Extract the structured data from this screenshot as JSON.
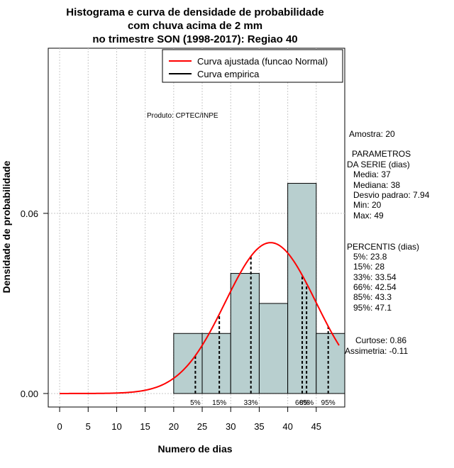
{
  "chart_data": {
    "type": "bar",
    "title": [
      "Histograma e curva de densidade de probabilidade",
      "com chuva acima de 2 mm",
      "no trimestre SON (1998-2017): Regiao 40"
    ],
    "xlabel": "Numero de dias",
    "ylabel": "Densidade de probabilidade",
    "xlim": [
      -2,
      50
    ],
    "ylim": [
      -0.0045,
      0.115
    ],
    "x_ticks": [
      0,
      5,
      10,
      15,
      20,
      25,
      30,
      35,
      40,
      45
    ],
    "y_ticks": [
      0.0,
      0.06
    ],
    "y_tick_labels": [
      "0.00",
      "0.06"
    ],
    "grid": true,
    "bins": [
      {
        "from": 20,
        "to": 25,
        "density": 0.02
      },
      {
        "from": 25,
        "to": 30,
        "density": 0.02
      },
      {
        "from": 30,
        "to": 35,
        "density": 0.04
      },
      {
        "from": 35,
        "to": 40,
        "density": 0.03
      },
      {
        "from": 40,
        "to": 45,
        "density": 0.07
      },
      {
        "from": 45,
        "to": 50,
        "density": 0.02
      }
    ],
    "bar_color": "#b8cfcf",
    "normal_curve": {
      "mean": 37,
      "sd": 7.94,
      "x_from": 0,
      "x_to": 49,
      "color": "#ff0000"
    },
    "percentiles": [
      {
        "label": "5%",
        "x": 23.8
      },
      {
        "label": "15%",
        "x": 28
      },
      {
        "label": "33%",
        "x": 33.54
      },
      {
        "label": "66%",
        "x": 42.54
      },
      {
        "label": "85%",
        "x": 43.3
      },
      {
        "label": "95%",
        "x": 47.1
      }
    ],
    "legend": {
      "position": "top-right",
      "entries": [
        {
          "label": "Curva ajustada (funcao Normal)",
          "color": "#ff0000"
        },
        {
          "label": "Curva empirica",
          "color": "#000000"
        }
      ]
    },
    "annotation": "Produto: CPTEC/INPE"
  },
  "side_panel": {
    "amostra": "Amostra: 20",
    "param_title_1": "PARAMETROS",
    "param_title_2": "DA SERIE (dias)",
    "media": "Media: 37",
    "mediana": "Mediana: 38",
    "desvio": "Desvio padrao: 7.94",
    "min": "Min: 20",
    "max": "Max: 49",
    "perc_title": "PERCENTIS (dias)",
    "p5": "5%: 23.8",
    "p15": "15%: 28",
    "p33": "33%: 33.54",
    "p66": "66%: 42.54",
    "p85": "85%: 43.3",
    "p95": "95%: 47.1",
    "curtose": "Curtose: 0.86",
    "assimetria": "Assimetria: -0.11"
  }
}
